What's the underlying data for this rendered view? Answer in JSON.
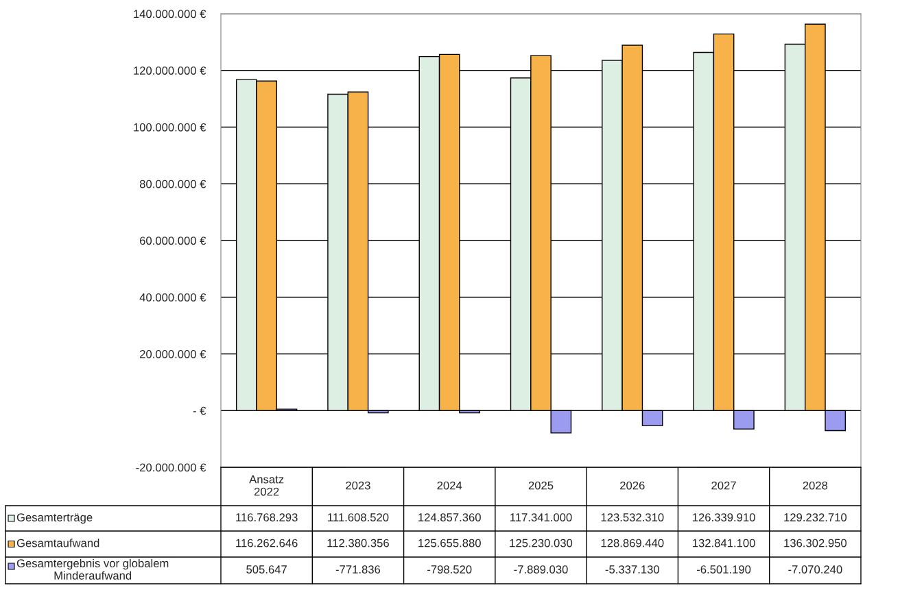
{
  "chart_data": {
    "type": "bar",
    "categories": [
      "Ansatz\n2022",
      "2023",
      "2024",
      "2025",
      "2026",
      "2027",
      "2028"
    ],
    "series": [
      {
        "name": "Gesamterträge",
        "color": "#dcefe2",
        "values": [
          116768293,
          111608520,
          124857360,
          117341000,
          123532310,
          126339910,
          129232710
        ],
        "value_labels": [
          "116.768.293",
          "111.608.520",
          "124.857.360",
          "117.341.000",
          "123.532.310",
          "126.339.910",
          "129.232.710"
        ]
      },
      {
        "name": "Gesamtaufwand",
        "color": "#f7b24a",
        "values": [
          116262646,
          112380356,
          125655880,
          125230030,
          128869440,
          132841100,
          136302950
        ],
        "value_labels": [
          "116.262.646",
          "112.380.356",
          "125.655.880",
          "125.230.030",
          "128.869.440",
          "132.841.100",
          "136.302.950"
        ]
      },
      {
        "name": "Gesamtergebnis vor globalem\nMinderaufwand",
        "color": "#9b9bf0",
        "values": [
          505647,
          -771836,
          -798520,
          -7889030,
          -5337130,
          -6501190,
          -7070240
        ],
        "value_labels": [
          "505.647",
          "-771.836",
          "-798.520",
          "-7.889.030",
          "-5.337.130",
          "-6.501.190",
          "-7.070.240"
        ]
      }
    ],
    "ylim": [
      -20000000,
      140000000
    ],
    "yticks": [
      {
        "value": -20000000,
        "label": "-20.000.000 €"
      },
      {
        "value": 0,
        "label": "- €"
      },
      {
        "value": 20000000,
        "label": "20.000.000 €"
      },
      {
        "value": 40000000,
        "label": "40.000.000 €"
      },
      {
        "value": 60000000,
        "label": "60.000.000 €"
      },
      {
        "value": 80000000,
        "label": "80.000.000 €"
      },
      {
        "value": 100000000,
        "label": "100.000.000 €"
      },
      {
        "value": 120000000,
        "label": "120.000.000 €"
      },
      {
        "value": 140000000,
        "label": "140.000.000 €"
      }
    ],
    "grid": "y",
    "legend": "bottom"
  }
}
